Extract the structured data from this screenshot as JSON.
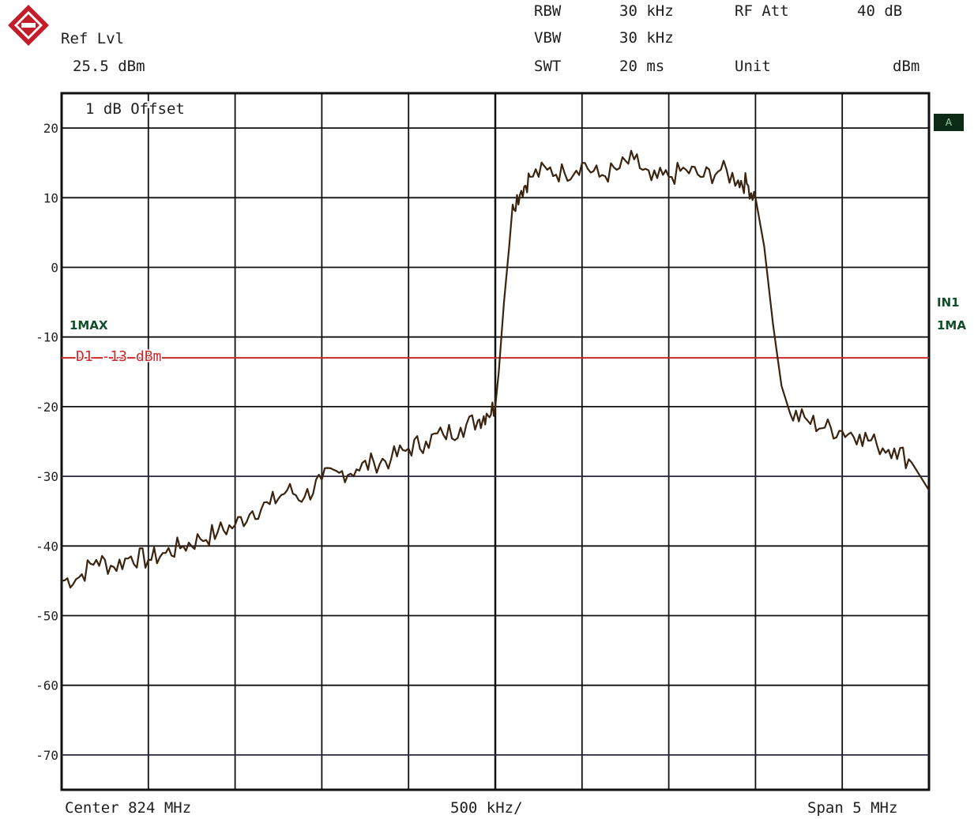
{
  "header": {
    "ref_lvl_label": "Ref Lvl",
    "ref_lvl_value": "25.5 dBm",
    "rbw_label": "RBW",
    "rbw_value": "30 kHz",
    "vbw_label": "VBW",
    "vbw_value": "30 kHz",
    "swt_label": "SWT",
    "swt_value": "20 ms",
    "rf_att_label": "RF Att",
    "rf_att_value": "40 dB",
    "unit_label": "Unit",
    "unit_value": "dBm"
  },
  "side": {
    "trace_mode_left": "1MAX",
    "trace_a": "A",
    "in1": "IN1",
    "ma1": "1MA"
  },
  "footer": {
    "center": "Center 824 MHz",
    "per_div": "500 kHz/",
    "span": "Span 5 MHz"
  },
  "colors": {
    "trace": "#3a2410",
    "display_line": "#cc2a2a",
    "grid": "#111111",
    "badge": "#124d2a"
  },
  "chart_data": {
    "type": "line",
    "title": "",
    "annotation": "1 dB Offset",
    "ylim": [
      -75,
      25
    ],
    "y_ticks": [
      20,
      10,
      0,
      -10,
      -20,
      -30,
      -40,
      -50,
      -60,
      -70
    ],
    "x_unit": "MHz",
    "xlim": [
      821.5,
      826.5
    ],
    "display_line": {
      "label": "D1 -13 dBm",
      "value": -13
    },
    "series": [
      {
        "x": [
          821.5,
          821.6,
          821.7,
          821.8,
          821.9,
          822.0,
          822.1,
          822.2,
          822.3,
          822.4,
          822.5,
          822.6,
          822.7,
          822.8,
          822.9,
          823.0,
          823.1,
          823.2,
          823.3,
          823.4,
          823.5,
          823.6,
          823.7,
          823.8,
          823.9,
          823.95,
          824.0,
          824.02,
          824.05,
          824.08,
          824.1,
          824.15,
          824.2,
          824.3,
          824.4,
          824.5,
          824.6,
          824.7,
          824.8,
          824.9,
          825.0,
          825.1,
          825.2,
          825.3,
          825.4,
          825.45,
          825.5,
          825.55,
          825.6,
          825.65,
          825.7,
          825.8,
          825.9,
          826.0,
          826.1,
          826.2,
          826.3,
          826.4,
          826.5
        ],
        "values": [
          -45,
          -44.5,
          -42,
          -43,
          -41.5,
          -42,
          -41,
          -40,
          -39,
          -38,
          -37,
          -35,
          -34,
          -32,
          -33,
          -30.5,
          -29.5,
          -29,
          -28,
          -27.5,
          -26,
          -25,
          -24,
          -23,
          -22,
          -21,
          -20,
          -15,
          -5,
          3,
          9,
          11,
          13,
          14,
          13.5,
          15,
          13,
          14,
          15.5,
          12.5,
          13,
          14,
          13,
          14,
          12.5,
          12,
          10,
          3,
          -8,
          -17,
          -21,
          -22,
          -23,
          -23.5,
          -24,
          -25.5,
          -26,
          -28,
          -32
        ]
      }
    ]
  }
}
